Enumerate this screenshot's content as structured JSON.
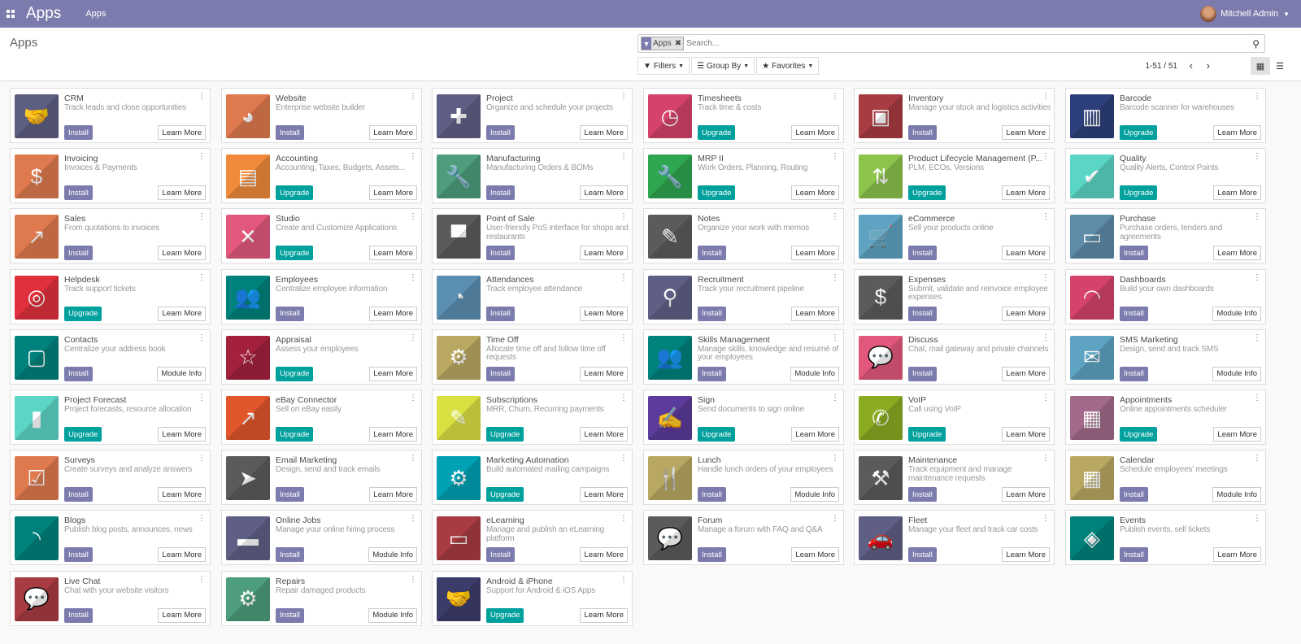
{
  "navbar": {
    "brand": "Apps",
    "menu": "Apps",
    "user": "Mitchell Admin",
    "color": "#7c7bad"
  },
  "control": {
    "title": "Apps",
    "facet": "Apps",
    "search_placeholder": "Search...",
    "filters": "Filters",
    "group_by": "Group By",
    "favorites": "Favorites",
    "pager": "1-51 / 51"
  },
  "colors": {
    "install": "#7c7bad",
    "upgrade": "#00a09d"
  },
  "apps": [
    {
      "name": "CRM",
      "desc": "Track leads and close opportunities",
      "action": "Install",
      "info": "Learn More",
      "color": "#5d5f82",
      "icon": "handshake-icon"
    },
    {
      "name": "Website",
      "desc": "Enterprise website builder",
      "action": "Install",
      "info": "Learn More",
      "color": "#df7a4f",
      "icon": "globe-icon"
    },
    {
      "name": "Project",
      "desc": "Organize and schedule your projects",
      "action": "Install",
      "info": "Learn More",
      "color": "#5f5f85",
      "icon": "puzzle-icon"
    },
    {
      "name": "Timesheets",
      "desc": "Track time & costs",
      "action": "Upgrade",
      "info": "Learn More",
      "color": "#d5436b",
      "icon": "clock-icon"
    },
    {
      "name": "Inventory",
      "desc": "Manage your stock and logistics activities",
      "action": "Install",
      "info": "Learn More",
      "color": "#a83c42",
      "icon": "box-icon"
    },
    {
      "name": "Barcode",
      "desc": "Barcode scanner for warehouses",
      "action": "Upgrade",
      "info": "Learn More",
      "color": "#2d3f7b",
      "icon": "barcode-icon"
    },
    {
      "name": "Invoicing",
      "desc": "Invoices & Payments",
      "action": "Install",
      "info": "Learn More",
      "color": "#df7a4f",
      "icon": "invoice-icon"
    },
    {
      "name": "Accounting",
      "desc": "Accounting, Taxes, Budgets, Assets...",
      "action": "Upgrade",
      "info": "Learn More",
      "color": "#f08a3a",
      "icon": "document-icon"
    },
    {
      "name": "Manufacturing",
      "desc": "Manufacturing Orders & BOMs",
      "action": "Install",
      "info": "Learn More",
      "color": "#4e9e7d",
      "icon": "wrench-icon"
    },
    {
      "name": "MRP II",
      "desc": "Work Orders, Planning, Routing",
      "action": "Upgrade",
      "info": "Learn More",
      "color": "#2fa650",
      "icon": "wrench-icon"
    },
    {
      "name": "Product Lifecycle Management (P...",
      "desc": "PLM, ECOs, Versions",
      "action": "Upgrade",
      "info": "Learn More",
      "color": "#8cc34b",
      "icon": "box-arrows-icon"
    },
    {
      "name": "Quality",
      "desc": "Quality Alerts, Control Points",
      "action": "Upgrade",
      "info": "Learn More",
      "color": "#5bd6c6",
      "icon": "clipboard-check-icon"
    },
    {
      "name": "Sales",
      "desc": "From quotations to invoices",
      "action": "Install",
      "info": "Learn More",
      "color": "#df7a4f",
      "icon": "chart-line-icon"
    },
    {
      "name": "Studio",
      "desc": "Create and Customize Applications",
      "action": "Upgrade",
      "info": "Learn More",
      "color": "#e2587c",
      "icon": "tools-icon"
    },
    {
      "name": "Point of Sale",
      "desc": "User-friendly PoS interface for shops and restaurants",
      "action": "Install",
      "info": "Learn More",
      "color": "#5b5b5b",
      "icon": "store-icon"
    },
    {
      "name": "Notes",
      "desc": "Organize your work with memos",
      "action": "Install",
      "info": "Learn More",
      "color": "#5b5b5b",
      "icon": "note-icon"
    },
    {
      "name": "eCommerce",
      "desc": "Sell your products online",
      "action": "Install",
      "info": "Learn More",
      "color": "#5ea3c2",
      "icon": "cart-icon"
    },
    {
      "name": "Purchase",
      "desc": "Purchase orders, tenders and agreements",
      "action": "Install",
      "info": "Learn More",
      "color": "#5d8ca9",
      "icon": "credit-card-icon"
    },
    {
      "name": "Helpdesk",
      "desc": "Track support tickets",
      "action": "Upgrade",
      "info": "Learn More",
      "color": "#e0303c",
      "icon": "lifebuoy-icon"
    },
    {
      "name": "Employees",
      "desc": "Centralize employee information",
      "action": "Install",
      "info": "Learn More",
      "color": "#00827c",
      "icon": "users-icon"
    },
    {
      "name": "Attendances",
      "desc": "Track employee attendance",
      "action": "Install",
      "info": "Learn More",
      "color": "#5b8fb1",
      "icon": "user-clock-icon"
    },
    {
      "name": "Recruitment",
      "desc": "Track your recruitment pipeline",
      "action": "Install",
      "info": "Learn More",
      "color": "#5f5f85",
      "icon": "search-icon"
    },
    {
      "name": "Expenses",
      "desc": "Submit, validate and reinvoice employee expenses",
      "action": "Install",
      "info": "Learn More",
      "color": "#5b5b5b",
      "icon": "user-dollar-icon"
    },
    {
      "name": "Dashboards",
      "desc": "Build your own dashboards",
      "action": "Install",
      "info": "Module Info",
      "color": "#d5436b",
      "icon": "gauge-icon"
    },
    {
      "name": "Contacts",
      "desc": "Centralize your address book",
      "action": "Install",
      "info": "Module Info",
      "color": "#00827c",
      "icon": "address-book-icon"
    },
    {
      "name": "Appraisal",
      "desc": "Assess your employees",
      "action": "Upgrade",
      "info": "Learn More",
      "color": "#a3213d",
      "icon": "star-icon"
    },
    {
      "name": "Time Off",
      "desc": "Allocate time off and follow time off requests",
      "action": "Install",
      "info": "Learn More",
      "color": "#b9a862",
      "icon": "user-gear-icon"
    },
    {
      "name": "Skills Management",
      "desc": "Manage skills, knowledge and resumé of your employees",
      "action": "Install",
      "info": "Module Info",
      "color": "#00827c",
      "icon": "users-icon"
    },
    {
      "name": "Discuss",
      "desc": "Chat, mail gateway and private channels",
      "action": "Install",
      "info": "Learn More",
      "color": "#e2587c",
      "icon": "chat-icon"
    },
    {
      "name": "SMS Marketing",
      "desc": "Design, send and track SMS",
      "action": "Install",
      "info": "Module Info",
      "color": "#5ea3c2",
      "icon": "sms-icon"
    },
    {
      "name": "Project Forecast",
      "desc": "Project forecasts, resource allocation",
      "action": "Upgrade",
      "info": "Learn More",
      "color": "#5bd6c6",
      "icon": "bar-chart-icon"
    },
    {
      "name": "eBay Connector",
      "desc": "Sell on eBay easily",
      "action": "Upgrade",
      "info": "Learn More",
      "color": "#e2562b",
      "icon": "chart-line-icon"
    },
    {
      "name": "Subscriptions",
      "desc": "MRR, Churn, Recurring payments",
      "action": "Upgrade",
      "info": "Learn More",
      "color": "#d9e142",
      "icon": "rss-pencil-icon"
    },
    {
      "name": "Sign",
      "desc": "Send documents to sign online",
      "action": "Upgrade",
      "info": "Learn More",
      "color": "#5b3b9b",
      "icon": "sign-document-icon"
    },
    {
      "name": "VoIP",
      "desc": "Call using VoIP",
      "action": "Upgrade",
      "info": "Learn More",
      "color": "#8bab22",
      "icon": "phone-icon"
    },
    {
      "name": "Appointments",
      "desc": "Online appointments scheduler",
      "action": "Upgrade",
      "info": "Learn More",
      "color": "#a2698b",
      "icon": "calendar-clock-icon"
    },
    {
      "name": "Surveys",
      "desc": "Create surveys and analyze answers",
      "action": "Install",
      "info": "Learn More",
      "color": "#df7a4f",
      "icon": "survey-icon"
    },
    {
      "name": "Email Marketing",
      "desc": "Design, send and track emails",
      "action": "Install",
      "info": "Learn More",
      "color": "#5b5b5b",
      "icon": "paper-plane-icon"
    },
    {
      "name": "Marketing Automation",
      "desc": "Build automated mailing campaigns",
      "action": "Upgrade",
      "info": "Learn More",
      "color": "#00a1b2",
      "icon": "gear-mail-icon"
    },
    {
      "name": "Lunch",
      "desc": "Handle lunch orders of your employees",
      "action": "Install",
      "info": "Module Info",
      "color": "#b9a862",
      "icon": "cutlery-icon"
    },
    {
      "name": "Maintenance",
      "desc": "Track equipment and manage maintenance requests",
      "action": "Install",
      "info": "Learn More",
      "color": "#5b5b5b",
      "icon": "hammer-icon"
    },
    {
      "name": "Calendar",
      "desc": "Schedule employees' meetings",
      "action": "Install",
      "info": "Module Info",
      "color": "#b9a862",
      "icon": "calendar-icon"
    },
    {
      "name": "Blogs",
      "desc": "Publish blog posts, announces, news",
      "action": "Install",
      "info": "Learn More",
      "color": "#00827c",
      "icon": "rss-icon"
    },
    {
      "name": "Online Jobs",
      "desc": "Manage your online hiring process",
      "action": "Install",
      "info": "Module Info",
      "color": "#5f5f85",
      "icon": "briefcase-icon"
    },
    {
      "name": "eLearning",
      "desc": "Manage and publish an eLearning platform",
      "action": "Install",
      "info": "Learn More",
      "color": "#a83c42",
      "icon": "presentation-icon"
    },
    {
      "name": "Forum",
      "desc": "Manage a forum with FAQ and Q&A",
      "action": "Install",
      "info": "Learn More",
      "color": "#5b5b5b",
      "icon": "user-chat-icon"
    },
    {
      "name": "Fleet",
      "desc": "Manage your fleet and track car costs",
      "action": "Install",
      "info": "Learn More",
      "color": "#5f5f85",
      "icon": "car-icon"
    },
    {
      "name": "Events",
      "desc": "Publish events, sell tickets",
      "action": "Install",
      "info": "Learn More",
      "color": "#00827c",
      "icon": "ticket-icon"
    },
    {
      "name": "Live Chat",
      "desc": "Chat with your website visitors",
      "action": "Install",
      "info": "Learn More",
      "color": "#a83c42",
      "icon": "comments-icon"
    },
    {
      "name": "Repairs",
      "desc": "Repair damaged products",
      "action": "Install",
      "info": "Module Info",
      "color": "#4e9e7d",
      "icon": "wrench-gear-icon"
    },
    {
      "name": "Android & iPhone",
      "desc": "Support for Android & iOS Apps",
      "action": "Upgrade",
      "info": "Learn More",
      "color": "#3c3c6b",
      "icon": "handshake-icon"
    }
  ]
}
